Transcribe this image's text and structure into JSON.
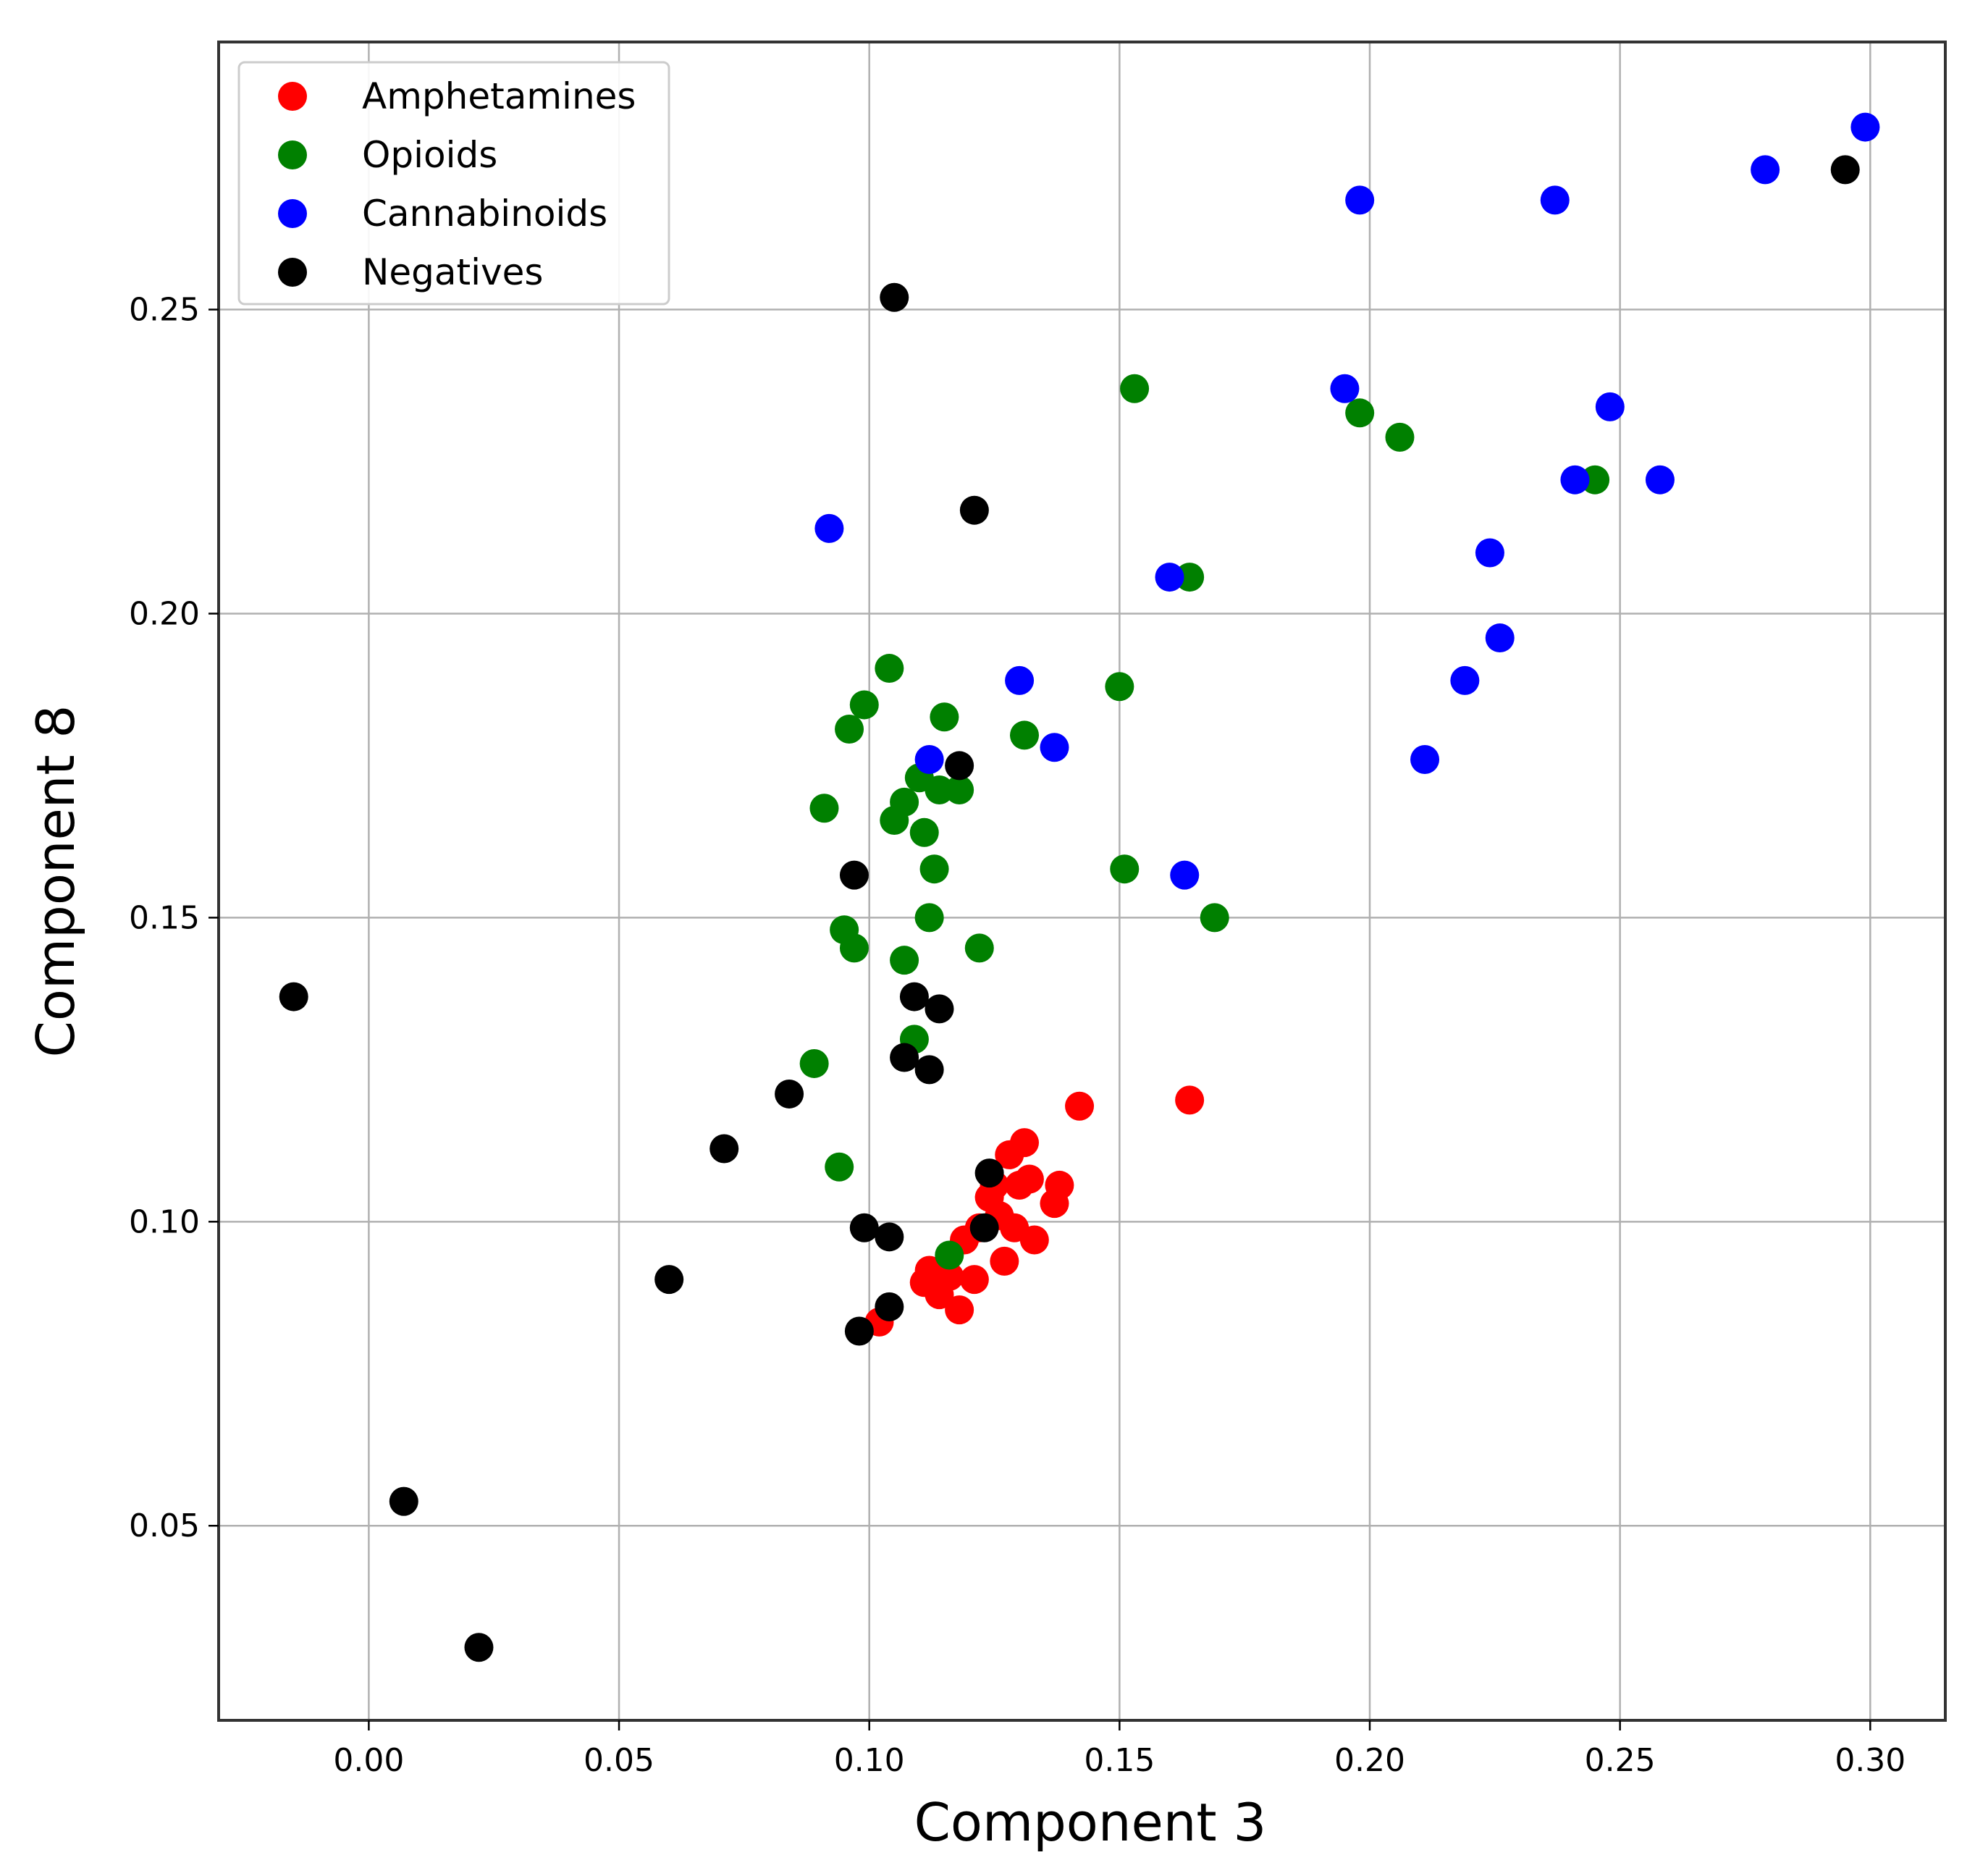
{
  "chart_data": {
    "type": "scatter",
    "xlabel": "Component 3",
    "ylabel": "Component 8",
    "xlim": [
      -0.03,
      0.315
    ],
    "ylim": [
      0.018,
      0.294
    ],
    "xticks": [
      0.0,
      0.05,
      0.1,
      0.15,
      0.2,
      0.25,
      0.3
    ],
    "xtick_labels": [
      "0.00",
      "0.05",
      "0.10",
      "0.15",
      "0.20",
      "0.25",
      "0.30"
    ],
    "yticks": [
      0.05,
      0.1,
      0.15,
      0.2,
      0.25
    ],
    "ytick_labels": [
      "0.05",
      "0.10",
      "0.15",
      "0.20",
      "0.25"
    ],
    "grid": true,
    "legend_position": "top-left",
    "series": [
      {
        "name": "Amphetamines",
        "color": "#ff0000",
        "points": [
          [
            0.102,
            0.0835
          ],
          [
            0.111,
            0.09
          ],
          [
            0.112,
            0.092
          ],
          [
            0.114,
            0.088
          ],
          [
            0.116,
            0.091
          ],
          [
            0.118,
            0.0855
          ],
          [
            0.119,
            0.097
          ],
          [
            0.121,
            0.0905
          ],
          [
            0.122,
            0.099
          ],
          [
            0.124,
            0.104
          ],
          [
            0.125,
            0.106
          ],
          [
            0.126,
            0.101
          ],
          [
            0.127,
            0.0935
          ],
          [
            0.128,
            0.111
          ],
          [
            0.129,
            0.099
          ],
          [
            0.13,
            0.106
          ],
          [
            0.131,
            0.113
          ],
          [
            0.132,
            0.107
          ],
          [
            0.133,
            0.097
          ],
          [
            0.137,
            0.103
          ],
          [
            0.138,
            0.106
          ],
          [
            0.142,
            0.119
          ],
          [
            0.164,
            0.12
          ]
        ]
      },
      {
        "name": "Opioids",
        "color": "#008000",
        "points": [
          [
            0.089,
            0.126
          ],
          [
            0.091,
            0.168
          ],
          [
            0.094,
            0.109
          ],
          [
            0.095,
            0.148
          ],
          [
            0.096,
            0.181
          ],
          [
            0.097,
            0.145
          ],
          [
            0.099,
            0.185
          ],
          [
            0.104,
            0.191
          ],
          [
            0.105,
            0.166
          ],
          [
            0.107,
            0.169
          ],
          [
            0.107,
            0.143
          ],
          [
            0.109,
            0.13
          ],
          [
            0.11,
            0.173
          ],
          [
            0.111,
            0.164
          ],
          [
            0.112,
            0.15
          ],
          [
            0.113,
            0.158
          ],
          [
            0.114,
            0.171
          ],
          [
            0.115,
            0.183
          ],
          [
            0.116,
            0.0945
          ],
          [
            0.118,
            0.171
          ],
          [
            0.122,
            0.145
          ],
          [
            0.131,
            0.18
          ],
          [
            0.15,
            0.188
          ],
          [
            0.151,
            0.158
          ],
          [
            0.153,
            0.237
          ],
          [
            0.164,
            0.206
          ],
          [
            0.169,
            0.15
          ],
          [
            0.198,
            0.233
          ],
          [
            0.206,
            0.229
          ],
          [
            0.245,
            0.222
          ]
        ]
      },
      {
        "name": "Cannabinoids",
        "color": "#0000ff",
        "points": [
          [
            0.092,
            0.214
          ],
          [
            0.112,
            0.176
          ],
          [
            0.13,
            0.189
          ],
          [
            0.137,
            0.178
          ],
          [
            0.16,
            0.206
          ],
          [
            0.163,
            0.157
          ],
          [
            0.195,
            0.237
          ],
          [
            0.198,
            0.268
          ],
          [
            0.211,
            0.176
          ],
          [
            0.219,
            0.189
          ],
          [
            0.224,
            0.21
          ],
          [
            0.226,
            0.196
          ],
          [
            0.237,
            0.268
          ],
          [
            0.241,
            0.222
          ],
          [
            0.248,
            0.234
          ],
          [
            0.258,
            0.222
          ],
          [
            0.279,
            0.273
          ],
          [
            0.299,
            0.28
          ]
        ]
      },
      {
        "name": "Negatives",
        "color": "#000000",
        "points": [
          [
            -0.015,
            0.137
          ],
          [
            0.007,
            0.054
          ],
          [
            0.022,
            0.03
          ],
          [
            0.06,
            0.0905
          ],
          [
            0.071,
            0.112
          ],
          [
            0.084,
            0.121
          ],
          [
            0.097,
            0.157
          ],
          [
            0.098,
            0.082
          ],
          [
            0.099,
            0.099
          ],
          [
            0.104,
            0.0975
          ],
          [
            0.104,
            0.086
          ],
          [
            0.105,
            0.252
          ],
          [
            0.107,
            0.127
          ],
          [
            0.109,
            0.137
          ],
          [
            0.112,
            0.125
          ],
          [
            0.114,
            0.135
          ],
          [
            0.118,
            0.175
          ],
          [
            0.121,
            0.217
          ],
          [
            0.123,
            0.099
          ],
          [
            0.124,
            0.108
          ],
          [
            0.295,
            0.273
          ]
        ]
      }
    ]
  }
}
